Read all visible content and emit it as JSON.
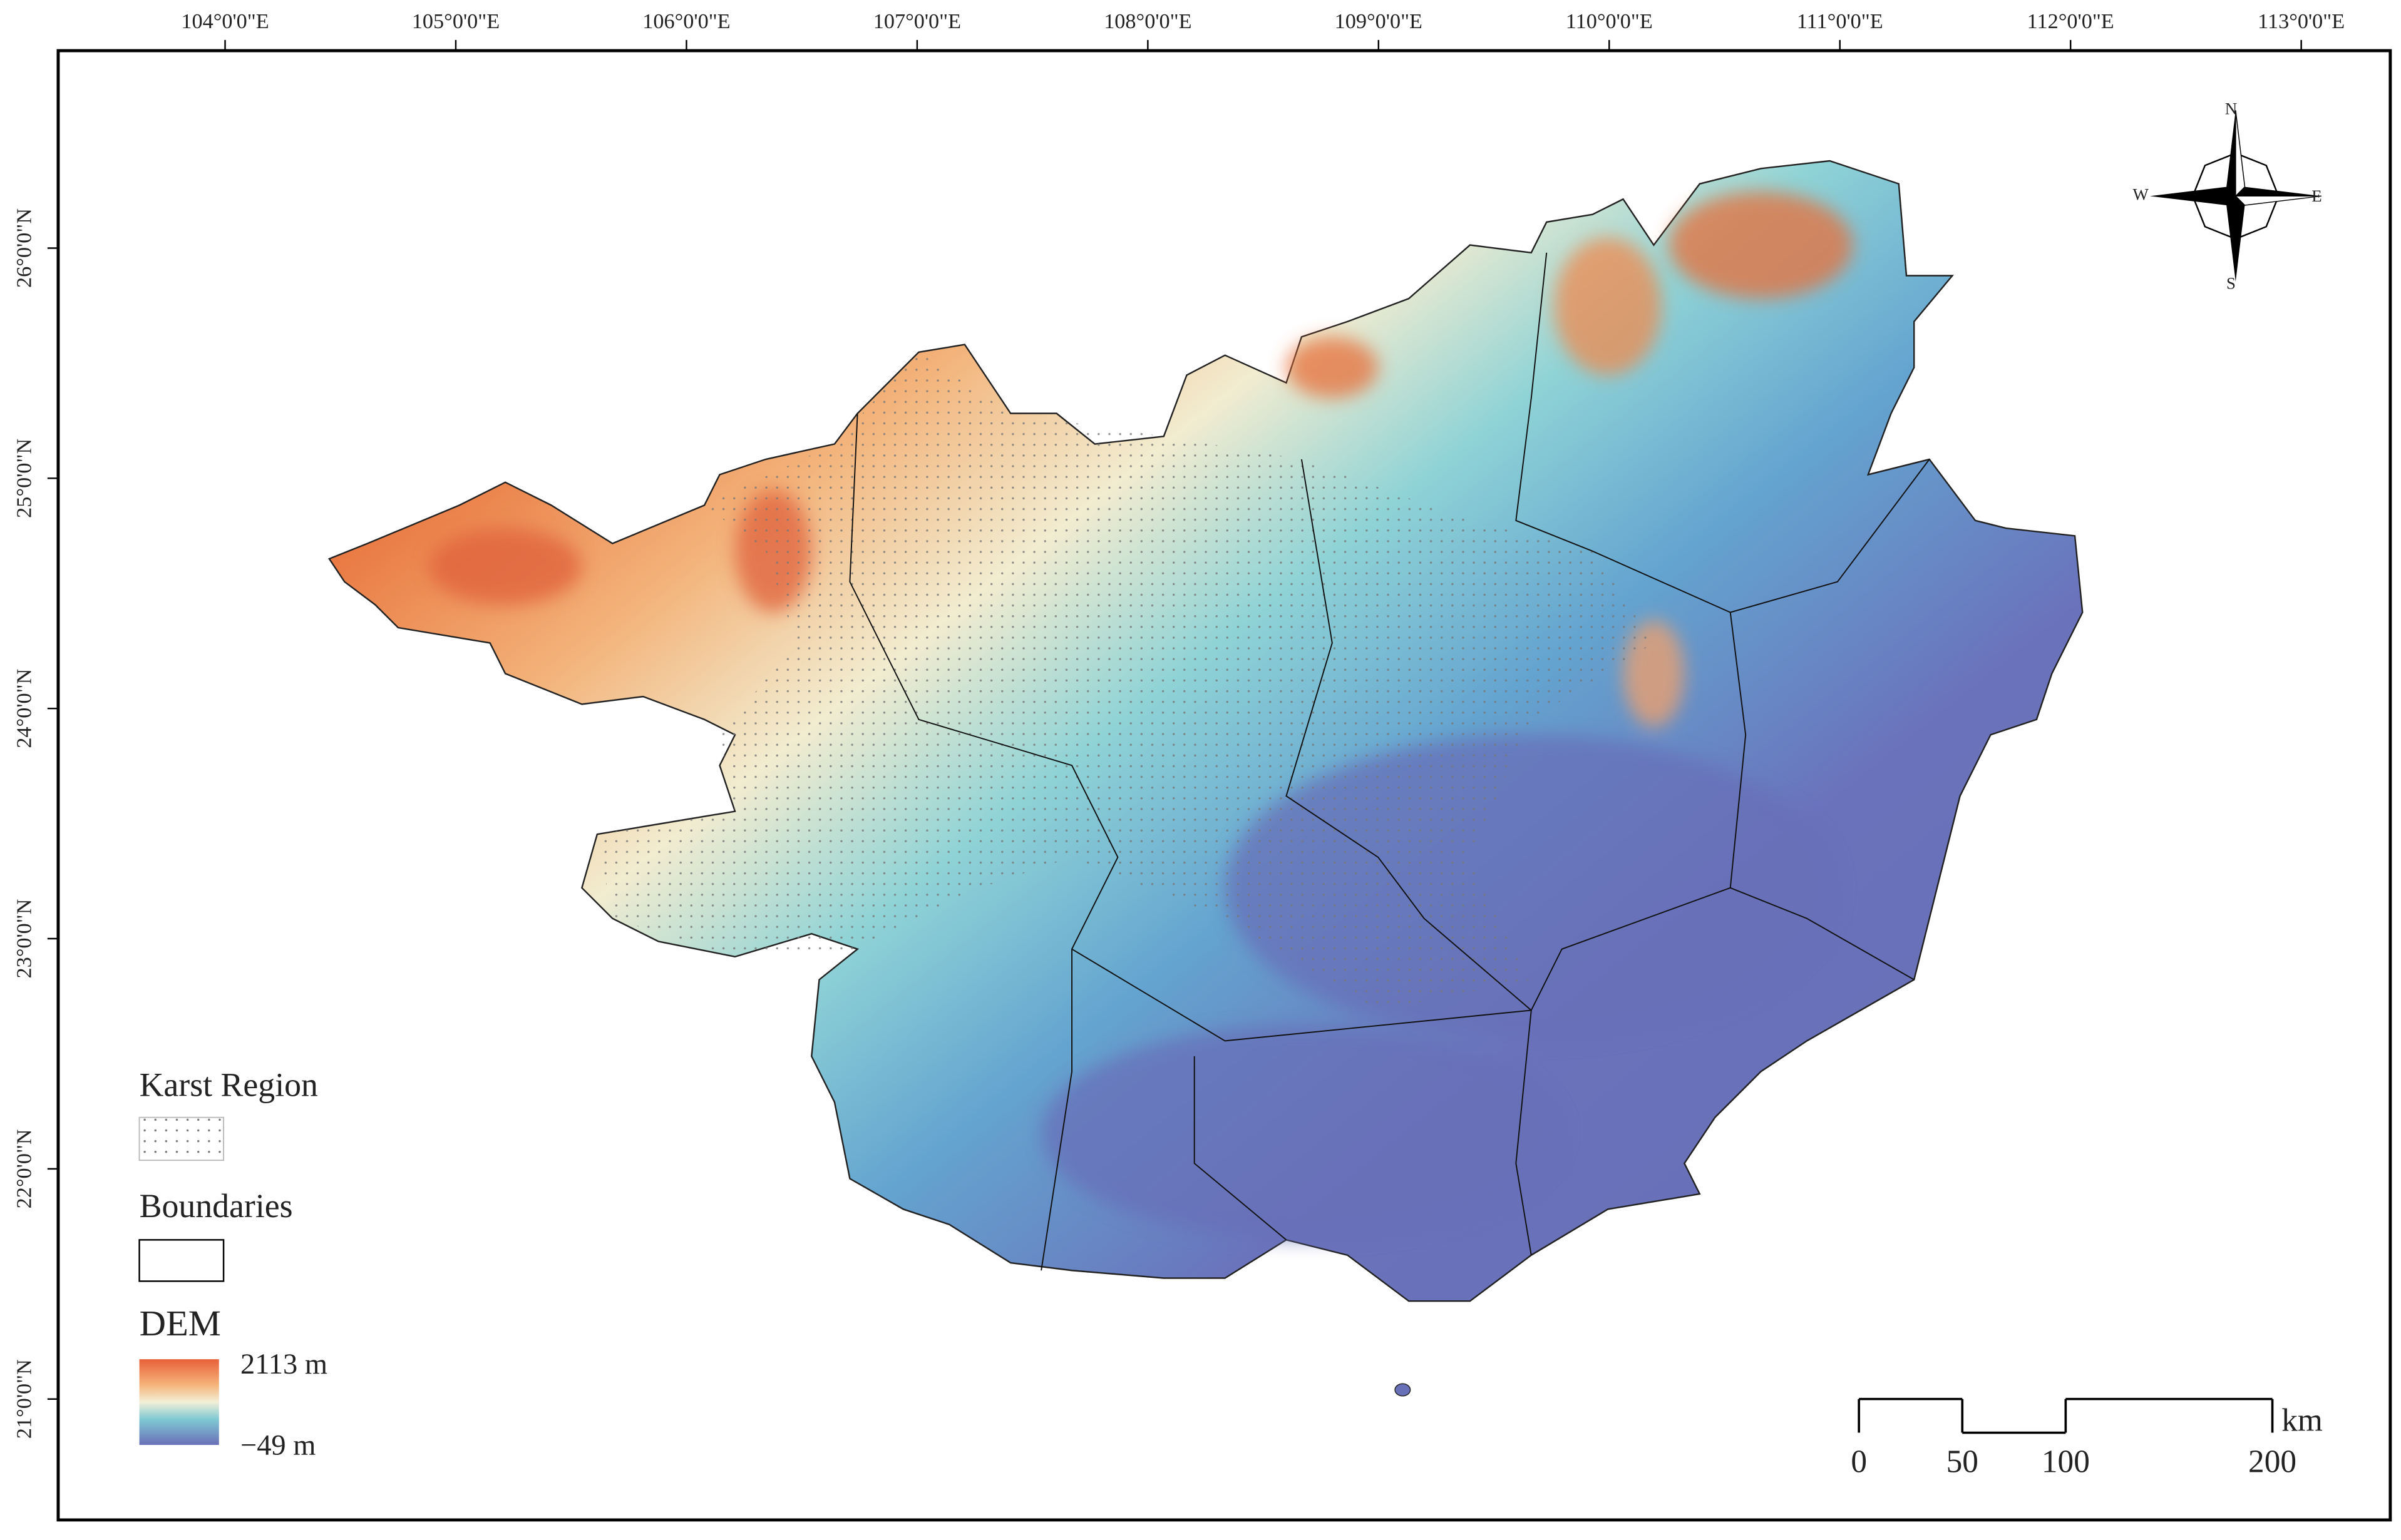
{
  "graticule": {
    "longitude_labels": [
      "104°0'0\"E",
      "105°0'0\"E",
      "106°0'0\"E",
      "107°0'0\"E",
      "108°0'0\"E",
      "109°0'0\"E",
      "110°0'0\"E",
      "111°0'0\"E",
      "112°0'0\"E",
      "113°0'0\"E"
    ],
    "latitude_labels": [
      "26°0'0\"N",
      "25°0'0\"N",
      "24°0'0\"N",
      "23°0'0\"N",
      "22°0'0\"N",
      "21°0'0\"N"
    ]
  },
  "legend": {
    "karst_title": "Karst Region",
    "boundaries_title": "Boundaries",
    "dem_title": "DEM",
    "dem_max": "2113 m",
    "dem_min": "−49 m"
  },
  "compass": {
    "n": "N",
    "s": "S",
    "e": "E",
    "w": "W"
  },
  "scale_bar": {
    "ticks": [
      0,
      50,
      100,
      200
    ],
    "unit": "km"
  }
}
